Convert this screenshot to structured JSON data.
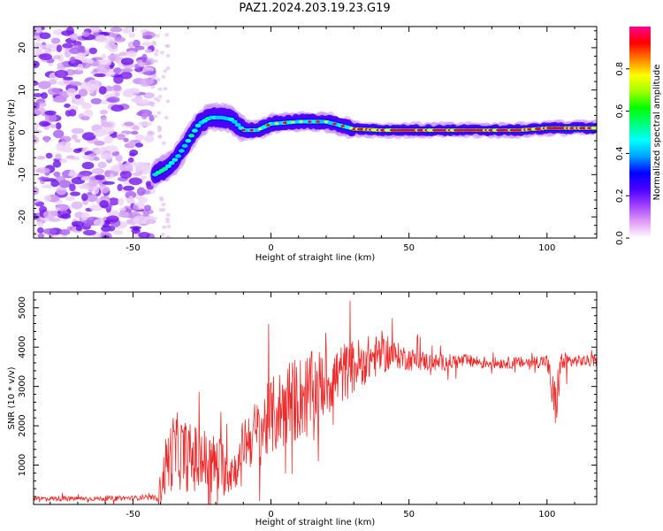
{
  "title": "PAZ1.2024.203.19.23.G19",
  "chart_data": [
    {
      "type": "heatmap",
      "xlabel": "Height of straight line (km)",
      "ylabel": "Frequency (Hz)",
      "xlim": [
        -86,
        118
      ],
      "ylim": [
        -25,
        25
      ],
      "xticks": [
        -50,
        0,
        50,
        100
      ],
      "yticks": [
        -20,
        -10,
        0,
        10,
        20
      ],
      "colorbar": {
        "label": "Normalized spectral amplitude",
        "range": [
          0,
          1
        ],
        "ticks": [
          "0.0",
          "0.2",
          "0.4",
          "0.6",
          "0.8"
        ],
        "colors": [
          "#ffffff",
          "#e29cf5",
          "#a040ff",
          "#4b00ff",
          "#0000ff",
          "#00a0ff",
          "#00ffff",
          "#00ff80",
          "#00ff00",
          "#a0ff00",
          "#ffff00",
          "#ff8000",
          "#ff0000",
          "#ff0090"
        ]
      },
      "ridge": {
        "x": [
          -42,
          -38,
          -34,
          -30,
          -26,
          -22,
          -18,
          -14,
          -10,
          -5,
          0,
          10,
          20,
          30,
          40,
          50,
          60,
          70,
          80,
          90,
          100,
          110,
          118
        ],
        "y": [
          -10,
          -8.5,
          -6,
          -2,
          2,
          3.5,
          3.5,
          3,
          0.5,
          0.5,
          2,
          2.5,
          2.5,
          0.8,
          0.5,
          0.5,
          0.5,
          0.5,
          0.5,
          0.5,
          1,
          1,
          1
        ]
      },
      "noise_region_x": [
        -86,
        -43
      ]
    },
    {
      "type": "line",
      "xlabel": "Height of straight line (km)",
      "ylabel": "SNR (10 * v/v)",
      "xlim": [
        -86,
        118
      ],
      "ylim": [
        0,
        5400
      ],
      "xticks": [
        -50,
        0,
        50,
        100
      ],
      "yticks": [
        1000,
        2000,
        3000,
        4000,
        5000
      ],
      "color": "#ee2b2b",
      "series": [
        {
          "x": [
            -86,
            -60,
            -42,
            -40,
            -38,
            -35,
            -30,
            -25,
            -20,
            -15,
            -12,
            -10,
            -5,
            0,
            5,
            10,
            15,
            20,
            25,
            30,
            35,
            40,
            45,
            50,
            60,
            70,
            80,
            90,
            100,
            103,
            105,
            110,
            118
          ],
          "y": [
            150,
            150,
            180,
            400,
            1000,
            1400,
            1200,
            1100,
            1000,
            900,
            900,
            1600,
            1800,
            2200,
            2500,
            2700,
            2900,
            3100,
            3300,
            3500,
            3700,
            3800,
            3800,
            3700,
            3600,
            3650,
            3600,
            3600,
            3650,
            2400,
            3600,
            3650,
            3650
          ],
          "spread": [
            60,
            60,
            60,
            400,
            800,
            1000,
            900,
            900,
            800,
            700,
            400,
            700,
            900,
            1000,
            1100,
            1100,
            1000,
            900,
            800,
            700,
            600,
            500,
            350,
            300,
            220,
            180,
            150,
            150,
            180,
            800,
            300,
            150,
            150
          ]
        }
      ]
    }
  ]
}
